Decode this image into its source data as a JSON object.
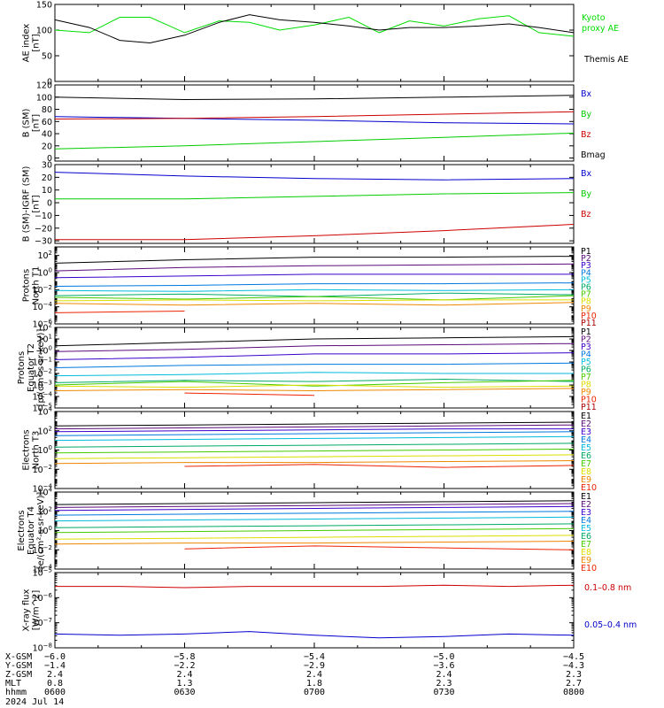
{
  "chart_data": [
    {
      "type": "line",
      "ylabel_lines": [
        "AE index",
        "[nT]"
      ],
      "ylim": [
        0,
        150
      ],
      "log": false,
      "yticks": [
        0,
        50,
        100,
        150
      ],
      "ytick_labels": [
        "0",
        "50",
        "100",
        "150"
      ],
      "legend": [
        {
          "text": "Kyoto",
          "color": "#00dd00",
          "align": "top"
        },
        {
          "text": "proxy AE",
          "color": "#00dd00",
          "align": "top"
        },
        {
          "text": "Themis AE",
          "color": "#000000",
          "align": "bottom"
        }
      ],
      "x_minutes": [
        0,
        8,
        15,
        22,
        30,
        38,
        45,
        52,
        60,
        68,
        75,
        82,
        90,
        98,
        105,
        112,
        120
      ],
      "series": [
        {
          "color": "#00dd00",
          "values": [
            100,
            95,
            125,
            125,
            95,
            118,
            115,
            100,
            110,
            125,
            95,
            118,
            108,
            122,
            128,
            95,
            88
          ]
        },
        {
          "color": "#000000",
          "values": [
            120,
            105,
            80,
            75,
            90,
            115,
            130,
            120,
            115,
            108,
            100,
            105,
            105,
            108,
            112,
            105,
            95
          ]
        }
      ]
    },
    {
      "type": "line",
      "ylabel_lines": [
        "B (SM)",
        "[nT]"
      ],
      "ylim": [
        -5,
        120
      ],
      "log": false,
      "yticks": [
        0,
        20,
        40,
        60,
        80,
        100,
        120
      ],
      "ytick_labels": [
        "0",
        "20",
        "40",
        "60",
        "80",
        "100",
        "120"
      ],
      "legend": [
        {
          "text": "Bx",
          "color": "#0000cc"
        },
        {
          "text": "By",
          "color": "#00cc00"
        },
        {
          "text": "Bz",
          "color": "#cc0000"
        },
        {
          "text": "Bmag",
          "color": "#000000"
        }
      ],
      "x_minutes": [
        0,
        30,
        60,
        90,
        120
      ],
      "series": [
        {
          "color": "#000000",
          "values": [
            100,
            96,
            97,
            100,
            103
          ]
        },
        {
          "color": "#0000cc",
          "values": [
            68,
            65,
            62,
            58,
            56
          ]
        },
        {
          "color": "#cc0000",
          "values": [
            64,
            65,
            68,
            72,
            76
          ]
        },
        {
          "color": "#00cc00",
          "values": [
            15,
            20,
            27,
            34,
            41
          ]
        }
      ]
    },
    {
      "type": "line",
      "ylabel_lines": [
        "B (SM)-IGRF (SM)",
        "[nT]"
      ],
      "ylim": [
        -32,
        30
      ],
      "log": false,
      "yticks": [
        -30,
        -20,
        -10,
        0,
        10,
        20,
        30
      ],
      "ytick_labels": [
        "−30",
        "−20",
        "−10",
        "0",
        "10",
        "20",
        "30"
      ],
      "legend": [
        {
          "text": "Bx",
          "color": "#0000cc"
        },
        {
          "text": "By",
          "color": "#00cc00"
        },
        {
          "text": "Bz",
          "color": "#cc0000"
        }
      ],
      "x_minutes": [
        0,
        30,
        60,
        90,
        120
      ],
      "series": [
        {
          "color": "#0000cc",
          "values": [
            24,
            21,
            19,
            18,
            19
          ]
        },
        {
          "color": "#00cc00",
          "values": [
            3,
            3,
            5,
            7,
            8
          ]
        },
        {
          "color": "#cc0000",
          "values": [
            -29,
            -29,
            -26,
            -22,
            -17
          ]
        }
      ]
    },
    {
      "type": "line",
      "ylabel_lines": [
        "Protons",
        "North T1"
      ],
      "ylim": [
        -6,
        3
      ],
      "log": true,
      "yticks": [
        -6,
        -4,
        -2,
        0,
        2
      ],
      "legend": [
        {
          "text": "P1",
          "color": "#000000"
        },
        {
          "text": "P2",
          "color": "#5a0c7a"
        },
        {
          "text": "P3",
          "color": "#3a00cc"
        },
        {
          "text": "P4",
          "color": "#0077dd"
        },
        {
          "text": "P5",
          "color": "#00bbdd"
        },
        {
          "text": "P6",
          "color": "#00aa66"
        },
        {
          "text": "P7",
          "color": "#44cc00"
        },
        {
          "text": "P8",
          "color": "#dddd00"
        },
        {
          "text": "P9",
          "color": "#ee8800"
        },
        {
          "text": "P10",
          "color": "#ee2200"
        },
        {
          "text": "P11",
          "color": "#aa0000"
        }
      ],
      "x_minutes": [
        0,
        30,
        60,
        90,
        120
      ],
      "series": [
        {
          "color": "#000000",
          "values": [
            1.1,
            1.5,
            1.8,
            1.8,
            1.9
          ]
        },
        {
          "color": "#5a0c7a",
          "values": [
            0.2,
            0.6,
            0.8,
            0.9,
            1.0
          ]
        },
        {
          "color": "#3a00cc",
          "values": [
            -0.6,
            -0.4,
            -0.2,
            -0.2,
            -0.2
          ]
        },
        {
          "color": "#0077dd",
          "values": [
            -1.6,
            -1.5,
            -1.3,
            -1.3,
            -1.2
          ]
        },
        {
          "color": "#00bbdd",
          "values": [
            -2.1,
            -2.2,
            -2.0,
            -2.1,
            -2.0
          ]
        },
        {
          "color": "#00aa66",
          "values": [
            -2.7,
            -2.5,
            -2.8,
            -2.4,
            -2.6
          ]
        },
        {
          "color": "#44cc00",
          "values": [
            -2.9,
            -3.1,
            -2.8,
            -3.2,
            -2.7
          ]
        },
        {
          "color": "#dddd00",
          "values": [
            -3.3,
            -3.2,
            -3.3,
            -3.2,
            -3.2
          ]
        },
        {
          "color": "#ee8800",
          "values": [
            -3.6,
            -3.8,
            -3.6,
            -3.8,
            -3.5
          ]
        },
        {
          "color": "#ee2200",
          "values": [
            -4.7,
            -4.5,
            null,
            null,
            null
          ]
        }
      ]
    },
    {
      "type": "line",
      "ylabel_lines": [
        "Protons",
        "Equator T2",
        "[p/(cm²-s-sr-keV)]"
      ],
      "ylim": [
        -5,
        2
      ],
      "log": true,
      "yticks": [
        -5,
        -4,
        -3,
        -2,
        -1,
        0,
        1,
        2
      ],
      "legend": [
        {
          "text": "P1",
          "color": "#000000"
        },
        {
          "text": "P2",
          "color": "#5a0c7a"
        },
        {
          "text": "P3",
          "color": "#3a00cc"
        },
        {
          "text": "P4",
          "color": "#0077dd"
        },
        {
          "text": "P5",
          "color": "#00bbdd"
        },
        {
          "text": "P6",
          "color": "#00aa66"
        },
        {
          "text": "P7",
          "color": "#44cc00"
        },
        {
          "text": "P8",
          "color": "#dddd00"
        },
        {
          "text": "P9",
          "color": "#ee8800"
        },
        {
          "text": "P10",
          "color": "#ee2200"
        },
        {
          "text": "P11",
          "color": "#aa0000"
        }
      ],
      "x_minutes": [
        0,
        30,
        60,
        90,
        120
      ],
      "series": [
        {
          "color": "#000000",
          "values": [
            0.4,
            0.7,
            1.0,
            1.1,
            1.2
          ]
        },
        {
          "color": "#5a0c7a",
          "values": [
            -0.1,
            0.1,
            0.4,
            0.5,
            0.6
          ]
        },
        {
          "color": "#3a00cc",
          "values": [
            -0.8,
            -0.6,
            -0.3,
            -0.3,
            -0.2
          ]
        },
        {
          "color": "#0077dd",
          "values": [
            -1.5,
            -1.3,
            -1.2,
            -1.2,
            -1.1
          ]
        },
        {
          "color": "#00bbdd",
          "values": [
            -2.2,
            -2.1,
            -1.9,
            -2.0,
            -2.0
          ]
        },
        {
          "color": "#00aa66",
          "values": [
            -2.8,
            -2.6,
            -2.7,
            -2.5,
            -2.7
          ]
        },
        {
          "color": "#44cc00",
          "values": [
            -3.0,
            -2.7,
            -3.1,
            -2.8,
            -2.6
          ]
        },
        {
          "color": "#dddd00",
          "values": [
            -3.1,
            -3.2,
            -3.0,
            -3.2,
            -3.1
          ]
        },
        {
          "color": "#ee8800",
          "values": [
            -3.5,
            -3.4,
            -3.5,
            -3.4,
            -3.3
          ]
        },
        {
          "color": "#ee2200",
          "values": [
            null,
            -3.7,
            -3.9,
            null,
            null
          ]
        }
      ]
    },
    {
      "type": "line",
      "ylabel_lines": [
        "Electrons",
        "North T3"
      ],
      "ylim": [
        -4,
        4
      ],
      "log": true,
      "yticks": [
        -4,
        -2,
        0,
        2,
        4
      ],
      "legend": [
        {
          "text": "E1",
          "color": "#000000"
        },
        {
          "text": "E2",
          "color": "#5a0c7a"
        },
        {
          "text": "E3",
          "color": "#3a00cc"
        },
        {
          "text": "E4",
          "color": "#0077dd"
        },
        {
          "text": "E5",
          "color": "#00bbdd"
        },
        {
          "text": "E6",
          "color": "#00aa66"
        },
        {
          "text": "E7",
          "color": "#44cc00"
        },
        {
          "text": "E8",
          "color": "#dddd00"
        },
        {
          "text": "E9",
          "color": "#ee8800"
        },
        {
          "text": "E10",
          "color": "#ee2200"
        }
      ],
      "x_minutes": [
        0,
        30,
        60,
        90,
        120
      ],
      "series": [
        {
          "color": "#000000",
          "values": [
            2.5,
            2.6,
            2.7,
            2.8,
            2.9
          ]
        },
        {
          "color": "#5a0c7a",
          "values": [
            2.2,
            2.3,
            2.4,
            2.5,
            2.6
          ]
        },
        {
          "color": "#3a00cc",
          "values": [
            1.9,
            2.0,
            2.1,
            2.2,
            2.2
          ]
        },
        {
          "color": "#0077dd",
          "values": [
            1.5,
            1.6,
            1.7,
            1.8,
            1.9
          ]
        },
        {
          "color": "#00bbdd",
          "values": [
            1.0,
            1.1,
            1.2,
            1.3,
            1.4
          ]
        },
        {
          "color": "#00aa66",
          "values": [
            0.3,
            0.4,
            0.5,
            0.6,
            0.7
          ]
        },
        {
          "color": "#44cc00",
          "values": [
            -0.3,
            -0.2,
            -0.1,
            0.0,
            0.1
          ]
        },
        {
          "color": "#dddd00",
          "values": [
            -0.9,
            -0.8,
            -0.7,
            -0.6,
            -0.5
          ]
        },
        {
          "color": "#ee8800",
          "values": [
            -1.4,
            -1.3,
            -1.3,
            -1.2,
            -1.1
          ]
        },
        {
          "color": "#ee2200",
          "values": [
            null,
            -1.7,
            -1.5,
            -1.8,
            -1.6
          ]
        }
      ]
    },
    {
      "type": "line",
      "ylabel_lines": [
        "Electrons",
        "Equator T4",
        "[e/(cm²-s-sr-keV)]"
      ],
      "ylim": [
        -4,
        4
      ],
      "log": true,
      "yticks": [
        -4,
        -2,
        0,
        2,
        4
      ],
      "legend": [
        {
          "text": "E1",
          "color": "#000000"
        },
        {
          "text": "E2",
          "color": "#5a0c7a"
        },
        {
          "text": "E3",
          "color": "#3a00cc"
        },
        {
          "text": "E4",
          "color": "#0077dd"
        },
        {
          "text": "E5",
          "color": "#00bbdd"
        },
        {
          "text": "E6",
          "color": "#00aa66"
        },
        {
          "text": "E7",
          "color": "#44cc00"
        },
        {
          "text": "E8",
          "color": "#dddd00"
        },
        {
          "text": "E9",
          "color": "#ee8800"
        },
        {
          "text": "E10",
          "color": "#ee2200"
        }
      ],
      "x_minutes": [
        0,
        30,
        60,
        90,
        120
      ],
      "series": [
        {
          "color": "#000000",
          "values": [
            2.7,
            2.8,
            2.9,
            3.0,
            3.1
          ]
        },
        {
          "color": "#5a0c7a",
          "values": [
            2.4,
            2.5,
            2.6,
            2.7,
            2.8
          ]
        },
        {
          "color": "#3a00cc",
          "values": [
            2.1,
            2.2,
            2.3,
            2.4,
            2.5
          ]
        },
        {
          "color": "#0077dd",
          "values": [
            1.6,
            1.7,
            1.8,
            1.9,
            2.0
          ]
        },
        {
          "color": "#00bbdd",
          "values": [
            1.0,
            1.1,
            1.2,
            1.3,
            1.4
          ]
        },
        {
          "color": "#00aa66",
          "values": [
            0.3,
            0.4,
            0.5,
            0.6,
            0.7
          ]
        },
        {
          "color": "#44cc00",
          "values": [
            -0.2,
            -0.1,
            0.0,
            0.1,
            0.2
          ]
        },
        {
          "color": "#dddd00",
          "values": [
            -0.9,
            -0.8,
            -0.7,
            -0.6,
            -0.5
          ]
        },
        {
          "color": "#ee8800",
          "values": [
            -1.4,
            -1.3,
            -1.3,
            -1.2,
            -1.1
          ]
        },
        {
          "color": "#ee2200",
          "values": [
            null,
            -1.9,
            -1.6,
            -1.8,
            -2.0
          ]
        }
      ]
    },
    {
      "type": "line",
      "ylabel_lines": [
        "X-ray flux",
        "[W/m^2]"
      ],
      "ylim": [
        -8,
        -5
      ],
      "log": true,
      "yticks": [
        -8,
        -7,
        -6,
        -5
      ],
      "legend": [
        {
          "text": "0.1–0.8 nm",
          "color": "#cc0000",
          "align": "mid1"
        },
        {
          "text": "0.05–0.4 nm",
          "color": "#0000cc",
          "align": "mid2"
        }
      ],
      "x_minutes": [
        0,
        15,
        30,
        45,
        60,
        75,
        90,
        105,
        120
      ],
      "series": [
        {
          "color": "#cc0000",
          "values": [
            -5.55,
            -5.55,
            -5.6,
            -5.55,
            -5.55,
            -5.55,
            -5.5,
            -5.55,
            -5.5
          ]
        },
        {
          "color": "#0000cc",
          "values": [
            -7.45,
            -7.5,
            -7.45,
            -7.35,
            -7.5,
            -7.6,
            -7.55,
            -7.45,
            -7.5
          ]
        }
      ]
    }
  ],
  "footer": {
    "row_labels": [
      "X-GSM",
      "Y-GSM",
      "Z-GSM",
      "MLT",
      "hhmm"
    ],
    "columns": [
      [
        "−6.0",
        "−1.4",
        "2.4",
        "0.8",
        "0600"
      ],
      [
        "−5.8",
        "−2.2",
        "2.4",
        "1.3",
        "0630"
      ],
      [
        "−5.4",
        "−2.9",
        "2.4",
        "1.8",
        "0700"
      ],
      [
        "−5.0",
        "−3.6",
        "2.4",
        "2.3",
        "0730"
      ],
      [
        "−4.5",
        "−4.3",
        "2.3",
        "2.7",
        "0800"
      ]
    ],
    "date": "2024 Jul 14"
  }
}
